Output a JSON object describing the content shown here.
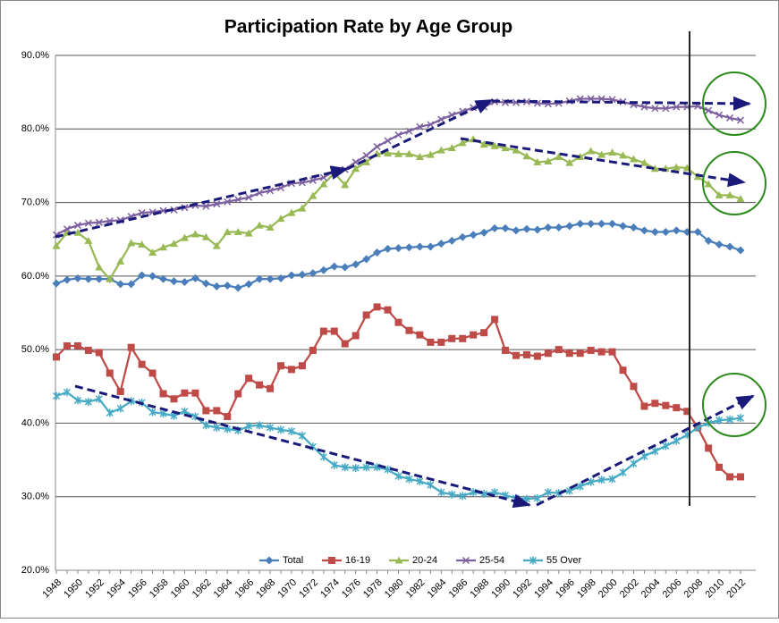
{
  "chart_data": {
    "type": "line",
    "title": "Participation Rate by Age Group",
    "categories": [
      "1948",
      null,
      "1950",
      null,
      "1952",
      null,
      "1954",
      null,
      "1956",
      null,
      "1958",
      null,
      "1960",
      null,
      "1962",
      null,
      "1964",
      null,
      "1966",
      null,
      "1968",
      null,
      "1970",
      null,
      "1972",
      null,
      "1974",
      null,
      "1976",
      null,
      "1978",
      null,
      "1980",
      null,
      "1982",
      null,
      "1984",
      null,
      "1986",
      null,
      "1988",
      null,
      "1990",
      null,
      "1992",
      null,
      "1994",
      null,
      "1996",
      null,
      "1998",
      null,
      "2000",
      null,
      "2002",
      null,
      "2004",
      null,
      "2006",
      null,
      "2008",
      null,
      "2010",
      null,
      "2012"
    ],
    "series": [
      {
        "name": "Total",
        "color": "#4a7ebb",
        "values": [
          59.0,
          59.5,
          59.7,
          59.6,
          59.6,
          59.6,
          58.9,
          58.9,
          60.1,
          60.0,
          59.6,
          59.3,
          59.2,
          59.7,
          59.0,
          58.6,
          58.7,
          58.4,
          58.9,
          59.6,
          59.6,
          59.7,
          60.1,
          60.2,
          60.4,
          60.8,
          61.3,
          61.2,
          61.6,
          62.3,
          63.2,
          63.7,
          63.8,
          63.9,
          64.0,
          64.0,
          64.4,
          64.8,
          65.3,
          65.6,
          65.9,
          66.5,
          66.5,
          66.2,
          66.4,
          66.3,
          66.6,
          66.6,
          66.8,
          67.1,
          67.1,
          67.1,
          67.1,
          66.8,
          66.6,
          66.2,
          66.0,
          66.0,
          66.2,
          66.0,
          66.0,
          64.8,
          64.3,
          64.0,
          63.5
        ]
      },
      {
        "name": "16-19",
        "color": "#be4b48",
        "values": [
          49.0,
          50.5,
          50.5,
          49.9,
          49.6,
          46.8,
          44.3,
          50.3,
          48.0,
          46.8,
          44.0,
          43.3,
          44.1,
          44.1,
          41.7,
          41.7,
          40.9,
          44.0,
          46.1,
          45.2,
          44.7,
          47.8,
          47.3,
          47.8,
          49.9,
          52.5,
          52.5,
          50.8,
          51.9,
          54.7,
          55.8,
          55.4,
          53.7,
          52.6,
          52.0,
          51.0,
          51.0,
          51.5,
          51.5,
          52.0,
          52.3,
          54.1,
          49.9,
          49.2,
          49.3,
          49.1,
          49.5,
          50.0,
          49.5,
          49.5,
          49.9,
          49.7,
          49.7,
          47.2,
          45.0,
          42.3,
          42.7,
          42.4,
          42.1,
          41.6,
          39.4,
          36.6,
          34.0,
          32.7,
          32.7
        ]
      },
      {
        "name": "20-24",
        "color": "#98b954",
        "values": [
          64.1,
          65.9,
          65.9,
          64.8,
          61.2,
          59.6,
          62.0,
          64.5,
          64.3,
          63.2,
          63.9,
          64.4,
          65.2,
          65.7,
          65.3,
          64.1,
          66.0,
          66.0,
          65.8,
          66.9,
          66.6,
          67.8,
          68.6,
          69.2,
          70.9,
          72.5,
          74.0,
          72.4,
          74.6,
          75.5,
          76.6,
          76.7,
          76.6,
          76.6,
          76.2,
          76.5,
          77.1,
          77.4,
          78.1,
          78.6,
          77.9,
          77.7,
          77.4,
          77.1,
          76.3,
          75.5,
          75.6,
          76.2,
          75.4,
          76.2,
          77.0,
          76.5,
          76.8,
          76.4,
          75.9,
          75.4,
          74.6,
          74.6,
          74.8,
          74.7,
          73.5,
          72.5,
          71.0,
          71.0,
          70.5
        ]
      },
      {
        "name": "25-54",
        "color": "#7d60a0",
        "values": [
          65.6,
          66.4,
          66.9,
          67.2,
          67.3,
          67.5,
          67.6,
          68.1,
          68.6,
          68.7,
          68.9,
          69.0,
          69.3,
          69.6,
          69.5,
          69.8,
          70.1,
          70.4,
          70.7,
          71.3,
          71.6,
          72.0,
          72.6,
          72.7,
          73.0,
          73.4,
          74.3,
          74.5,
          75.5,
          76.4,
          77.6,
          78.4,
          79.2,
          79.7,
          80.3,
          80.6,
          81.3,
          81.9,
          82.4,
          82.9,
          83.0,
          83.7,
          83.6,
          83.6,
          83.7,
          83.5,
          83.4,
          83.5,
          83.8,
          84.1,
          84.1,
          84.1,
          84.0,
          83.7,
          83.3,
          83.0,
          82.8,
          82.8,
          83.0,
          83.0,
          83.1,
          82.5,
          81.9,
          81.5,
          81.2
        ]
      },
      {
        "name": "55 Over",
        "color": "#46aac5",
        "values": [
          43.7,
          44.2,
          43.1,
          42.9,
          43.3,
          41.4,
          42.0,
          43.0,
          42.8,
          41.5,
          41.3,
          41.0,
          41.6,
          40.9,
          39.7,
          39.4,
          39.2,
          39.0,
          39.6,
          39.7,
          39.4,
          39.1,
          38.9,
          38.3,
          36.8,
          35.4,
          34.3,
          34.0,
          33.9,
          34.0,
          34.0,
          33.7,
          32.8,
          32.4,
          32.1,
          31.6,
          30.6,
          30.3,
          30.1,
          30.6,
          30.4,
          30.6,
          30.2,
          29.8,
          29.7,
          29.8,
          30.6,
          30.5,
          30.8,
          31.4,
          32.0,
          32.3,
          32.4,
          33.3,
          34.5,
          35.5,
          36.2,
          36.9,
          37.6,
          38.4,
          39.4,
          40.0,
          40.4,
          40.5,
          40.7
        ]
      }
    ],
    "ylim": [
      20,
      90
    ],
    "yticks": [
      {
        "value": 20,
        "label": "20.0%"
      },
      {
        "value": 30,
        "label": "30.0%"
      },
      {
        "value": 40,
        "label": "40.0%"
      },
      {
        "value": 50,
        "label": "50.0%"
      },
      {
        "value": 60,
        "label": "60.0%"
      },
      {
        "value": 70,
        "label": "70.0%"
      },
      {
        "value": 80,
        "label": "80.0%"
      },
      {
        "value": 90,
        "label": "90.0%"
      }
    ],
    "grid": true,
    "legend": "bottom"
  }
}
